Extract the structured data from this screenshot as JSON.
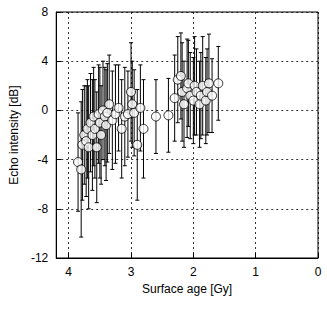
{
  "chart_data": {
    "type": "scatter",
    "x_label": "Surface age [Gy]",
    "y_label": "Echo intensity [dB]",
    "xlim": [
      4.2,
      0
    ],
    "xticks": [
      4,
      3,
      2,
      1,
      0
    ],
    "ylim": [
      -12,
      8
    ],
    "yticks": [
      -12,
      -8,
      -4,
      0,
      4,
      8
    ],
    "grid": true,
    "series": [
      {
        "color": "#000000",
        "marker": "open_circle",
        "x": [
          3.85,
          3.8,
          3.78,
          3.75,
          3.72,
          3.7,
          3.68,
          3.65,
          3.62,
          3.6,
          3.58,
          3.55,
          3.52,
          3.5,
          3.48,
          3.45,
          3.42,
          3.4,
          3.38,
          3.35,
          3.3,
          3.25,
          3.2,
          3.15,
          3.1,
          3.05,
          3.0,
          2.98,
          2.95,
          2.9,
          2.85,
          2.8,
          2.6,
          2.4,
          2.3,
          2.25,
          2.2,
          2.18,
          2.15,
          2.1,
          2.08,
          2.05,
          2.0,
          1.98,
          1.95,
          1.9,
          1.88,
          1.85,
          1.8,
          1.78,
          1.75,
          1.7,
          1.6
        ],
        "values": [
          -4.2,
          -4.8,
          -2.8,
          -2.0,
          -2.5,
          -1.5,
          -3.0,
          -1.0,
          -2.0,
          -0.5,
          -1.5,
          -3.0,
          -0.3,
          -1.0,
          -2.0,
          0.0,
          -0.5,
          -1.2,
          -0.2,
          0.5,
          -0.8,
          -0.3,
          0.2,
          -1.5,
          -0.5,
          -0.3,
          1.5,
          0.5,
          -0.2,
          -2.8,
          0.2,
          -1.5,
          -0.5,
          -0.4,
          1.0,
          2.5,
          2.8,
          1.5,
          0.5,
          1.8,
          2.2,
          1.2,
          0.8,
          2.0,
          1.5,
          0.5,
          1.2,
          2.0,
          0.8,
          1.5,
          2.2,
          1.2,
          2.2
        ],
        "error": [
          4.0,
          5.5,
          4.5,
          4.0,
          4.5,
          4.0,
          5.0,
          4.0,
          4.5,
          4.0,
          4.0,
          4.5,
          4.0,
          4.5,
          4.0,
          4.0,
          4.0,
          4.5,
          4.0,
          4.0,
          4.0,
          4.0,
          3.5,
          4.0,
          4.0,
          3.5,
          4.0,
          3.5,
          3.5,
          4.5,
          3.5,
          4.0,
          3.0,
          3.0,
          3.5,
          3.5,
          3.5,
          4.0,
          3.5,
          4.0,
          3.5,
          3.5,
          3.5,
          4.0,
          3.5,
          3.5,
          3.5,
          4.0,
          3.5,
          3.5,
          4.0,
          3.0,
          3.0
        ]
      }
    ]
  }
}
